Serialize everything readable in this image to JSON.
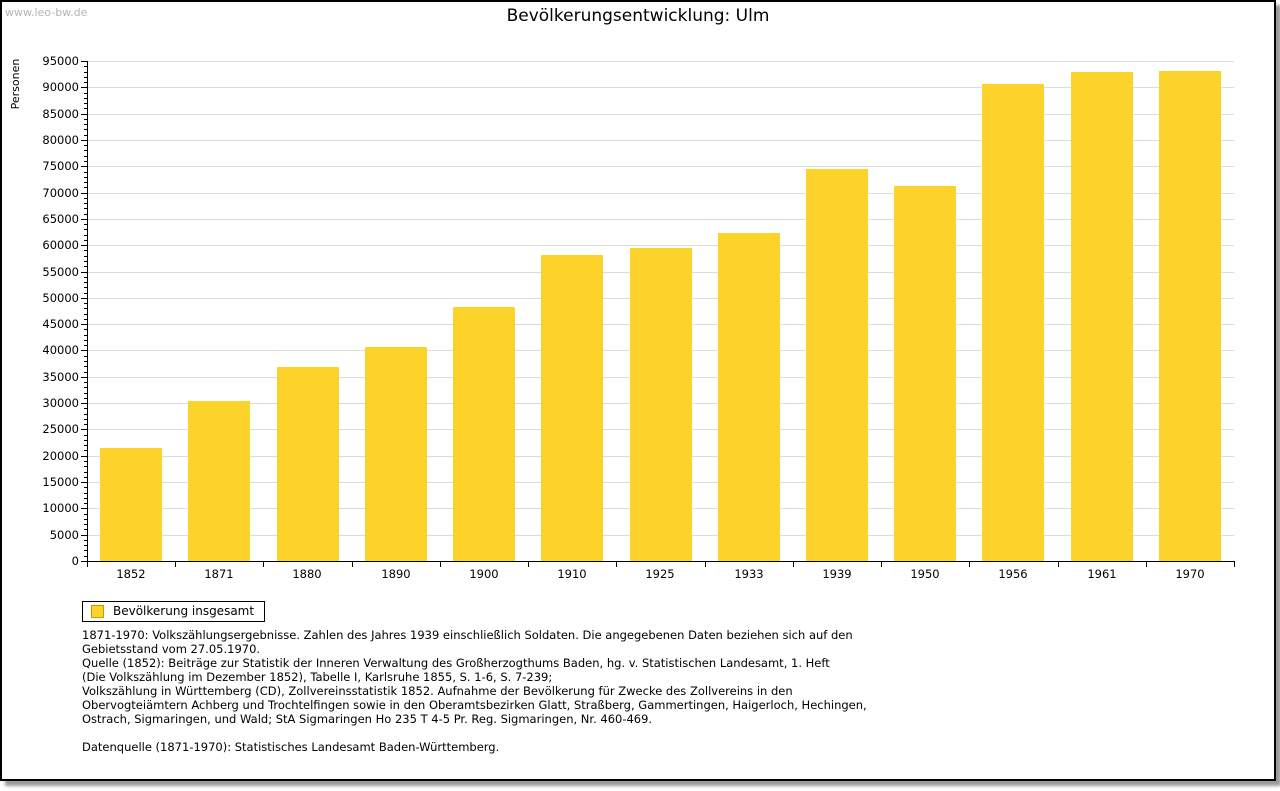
{
  "watermark": "www.leo-bw.de",
  "title": "Bevölkerungsentwicklung: Ulm",
  "colors": {
    "bar": "#fcd32b",
    "bar_border_legend": "#c79b00",
    "grid": "#dcdcdc",
    "axis": "#000000",
    "watermark_text": "#b4b4b4"
  },
  "legend": {
    "label": "Bevölkerung insgesamt",
    "position": "bottom-left"
  },
  "chart_data": {
    "type": "bar",
    "title": "Bevölkerungsentwicklung: Ulm",
    "ylabel": "Personen",
    "xlabel": "",
    "categories": [
      "1852",
      "1871",
      "1880",
      "1890",
      "1900",
      "1910",
      "1925",
      "1933",
      "1939",
      "1950",
      "1956",
      "1961",
      "1970"
    ],
    "values": [
      21500,
      30400,
      36900,
      40600,
      48200,
      58200,
      59500,
      62400,
      74500,
      71200,
      90600,
      92900,
      93100
    ],
    "series_name": "Bevölkerung insgesamt",
    "ylim": [
      0,
      95000
    ],
    "ytick_step": 5000,
    "yminor_step": 1000,
    "grid": "horizontal-major",
    "legend_position": "bottom-left"
  },
  "footnotes": {
    "lines": [
      "1871-1970: Volkszählungsergebnisse. Zahlen des Jahres 1939 einschließlich Soldaten. Die angegebenen Daten beziehen sich auf den",
      "Gebietsstand vom 27.05.1970.",
      "Quelle (1852): Beiträge zur Statistik der Inneren Verwaltung des Großherzogthums Baden, hg. v. Statistischen Landesamt, 1. Heft",
      "(Die Volkszählung im Dezember 1852), Tabelle I, Karlsruhe 1855, S. 1-6, S. 7-239;",
      "Volkszählung in Württemberg (CD), Zollvereinsstatistik 1852. Aufnahme der Bevölkerung für Zwecke des Zollvereins in den",
      "Obervogteiämtern Achberg und Trochtelfingen sowie in den Oberamtsbezirken Glatt, Straßberg, Gammertingen, Haigerloch, Hechingen,",
      "Ostrach, Sigmaringen, und Wald; StA Sigmaringen Ho 235 T 4-5 Pr. Reg. Sigmaringen, Nr. 460-469.",
      "",
      "Datenquelle (1871-1970): Statistisches Landesamt Baden-Württemberg."
    ]
  }
}
